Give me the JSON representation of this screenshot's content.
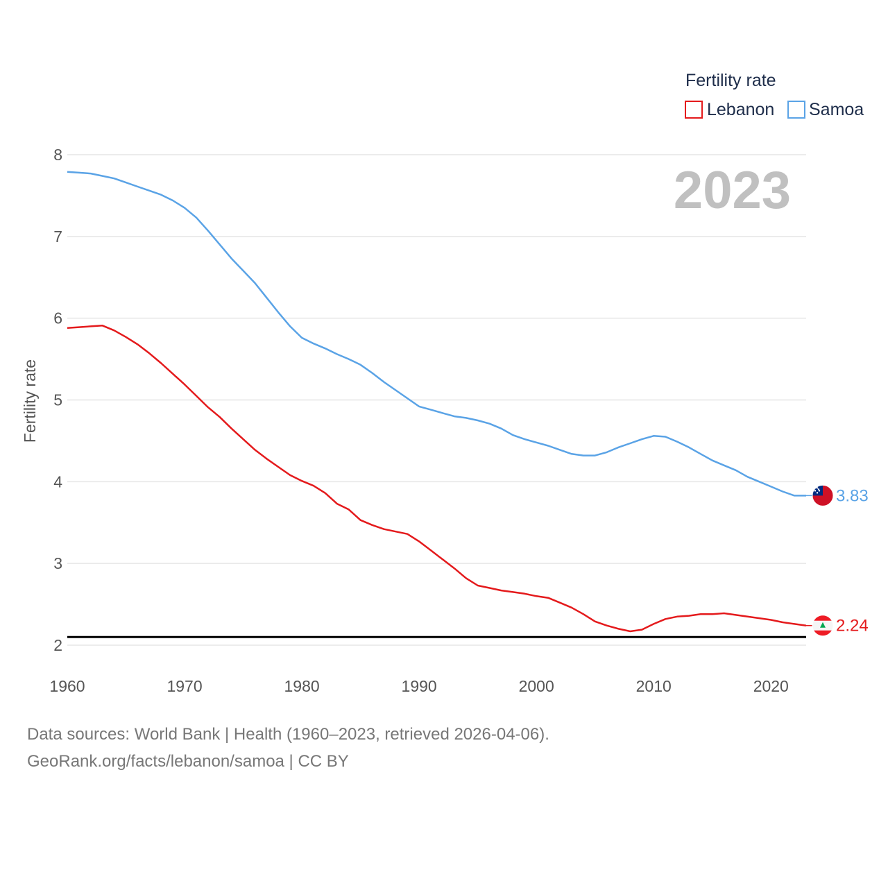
{
  "chart_data": {
    "type": "line",
    "title": "",
    "xlabel": "",
    "ylabel": "Fertility rate",
    "xlim": [
      1960,
      2023
    ],
    "ylim": [
      2,
      8
    ],
    "x_ticks": [
      1960,
      1970,
      1980,
      1990,
      2000,
      2010,
      2020
    ],
    "y_ticks": [
      2,
      3,
      4,
      5,
      6,
      7,
      8
    ],
    "reference_line": {
      "y": 2.1,
      "color": "#000000"
    },
    "year_label": "2023",
    "legend": {
      "title": "Fertility rate",
      "position": "top-right"
    },
    "x": [
      1960,
      1961,
      1962,
      1963,
      1964,
      1965,
      1966,
      1967,
      1968,
      1969,
      1970,
      1971,
      1972,
      1973,
      1974,
      1975,
      1976,
      1977,
      1978,
      1979,
      1980,
      1981,
      1982,
      1983,
      1984,
      1985,
      1986,
      1987,
      1988,
      1989,
      1990,
      1991,
      1992,
      1993,
      1994,
      1995,
      1996,
      1997,
      1998,
      1999,
      2000,
      2001,
      2002,
      2003,
      2004,
      2005,
      2006,
      2007,
      2008,
      2009,
      2010,
      2011,
      2012,
      2013,
      2014,
      2015,
      2016,
      2017,
      2018,
      2019,
      2020,
      2021,
      2022,
      2023
    ],
    "series": [
      {
        "name": "Lebanon",
        "color": "#e41a1c",
        "flag": "lebanon-flag",
        "end_label": "2.24",
        "values": [
          5.88,
          5.89,
          5.9,
          5.91,
          5.85,
          5.77,
          5.68,
          5.57,
          5.45,
          5.32,
          5.19,
          5.05,
          4.91,
          4.79,
          4.65,
          4.52,
          4.39,
          4.28,
          4.18,
          4.08,
          4.01,
          3.95,
          3.86,
          3.73,
          3.66,
          3.53,
          3.47,
          3.42,
          3.39,
          3.36,
          3.27,
          3.16,
          3.05,
          2.94,
          2.82,
          2.73,
          2.7,
          2.67,
          2.65,
          2.63,
          2.6,
          2.58,
          2.52,
          2.46,
          2.38,
          2.29,
          2.24,
          2.2,
          2.17,
          2.19,
          2.26,
          2.32,
          2.35,
          2.36,
          2.38,
          2.38,
          2.39,
          2.37,
          2.35,
          2.33,
          2.31,
          2.28,
          2.26,
          2.24
        ]
      },
      {
        "name": "Samoa",
        "color": "#5aa3e6",
        "flag": "samoa-flag",
        "end_label": "3.83",
        "values": [
          7.79,
          7.78,
          7.77,
          7.74,
          7.71,
          7.66,
          7.61,
          7.56,
          7.51,
          7.44,
          7.35,
          7.23,
          7.07,
          6.9,
          6.73,
          6.58,
          6.43,
          6.25,
          6.07,
          5.9,
          5.76,
          5.69,
          5.63,
          5.56,
          5.5,
          5.43,
          5.33,
          5.22,
          5.12,
          5.02,
          4.92,
          4.88,
          4.84,
          4.8,
          4.78,
          4.75,
          4.71,
          4.65,
          4.57,
          4.52,
          4.48,
          4.44,
          4.39,
          4.34,
          4.32,
          4.32,
          4.36,
          4.42,
          4.47,
          4.52,
          4.56,
          4.55,
          4.49,
          4.42,
          4.34,
          4.26,
          4.2,
          4.14,
          4.06,
          4.0,
          3.94,
          3.88,
          3.83,
          3.83
        ]
      }
    ]
  },
  "footer": {
    "line1": "Data sources: World Bank | Health (1960–2023, retrieved 2026-04-06).",
    "line2": "GeoRank.org/facts/lebanon/samoa | CC BY"
  }
}
